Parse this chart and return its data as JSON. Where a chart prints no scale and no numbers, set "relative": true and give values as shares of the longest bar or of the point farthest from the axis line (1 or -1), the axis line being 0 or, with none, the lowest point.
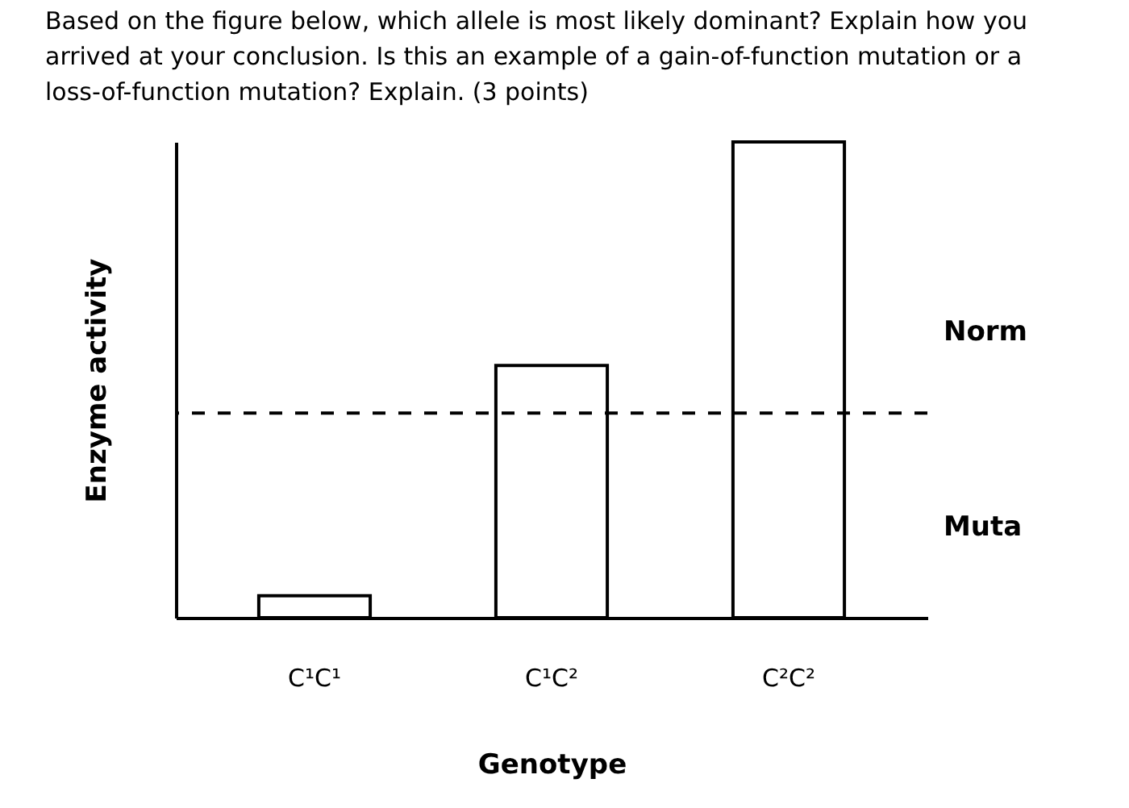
{
  "chart_data": {
    "type": "bar",
    "relative": true,
    "title": "Based on the figure below, which allele is most likely dominant? Explain how you arrived at your conclusion. Is this an example of a gain-of-function mutation or a loss-of-function mutation? Explain. (3 points)",
    "xlabel": "Genotype",
    "ylabel": "Enzyme activity",
    "categories": [
      "C¹C¹",
      "C¹C²",
      "C²C²"
    ],
    "values": [
      0.046,
      0.53,
      1.0
    ],
    "color": "#ffffff",
    "ref_lines": [
      {
        "axis": "y",
        "value": 0.43,
        "line_style": "dashed",
        "color": "#000000"
      }
    ],
    "annotations": [
      "Norm",
      "Muta"
    ],
    "grid": false
  }
}
